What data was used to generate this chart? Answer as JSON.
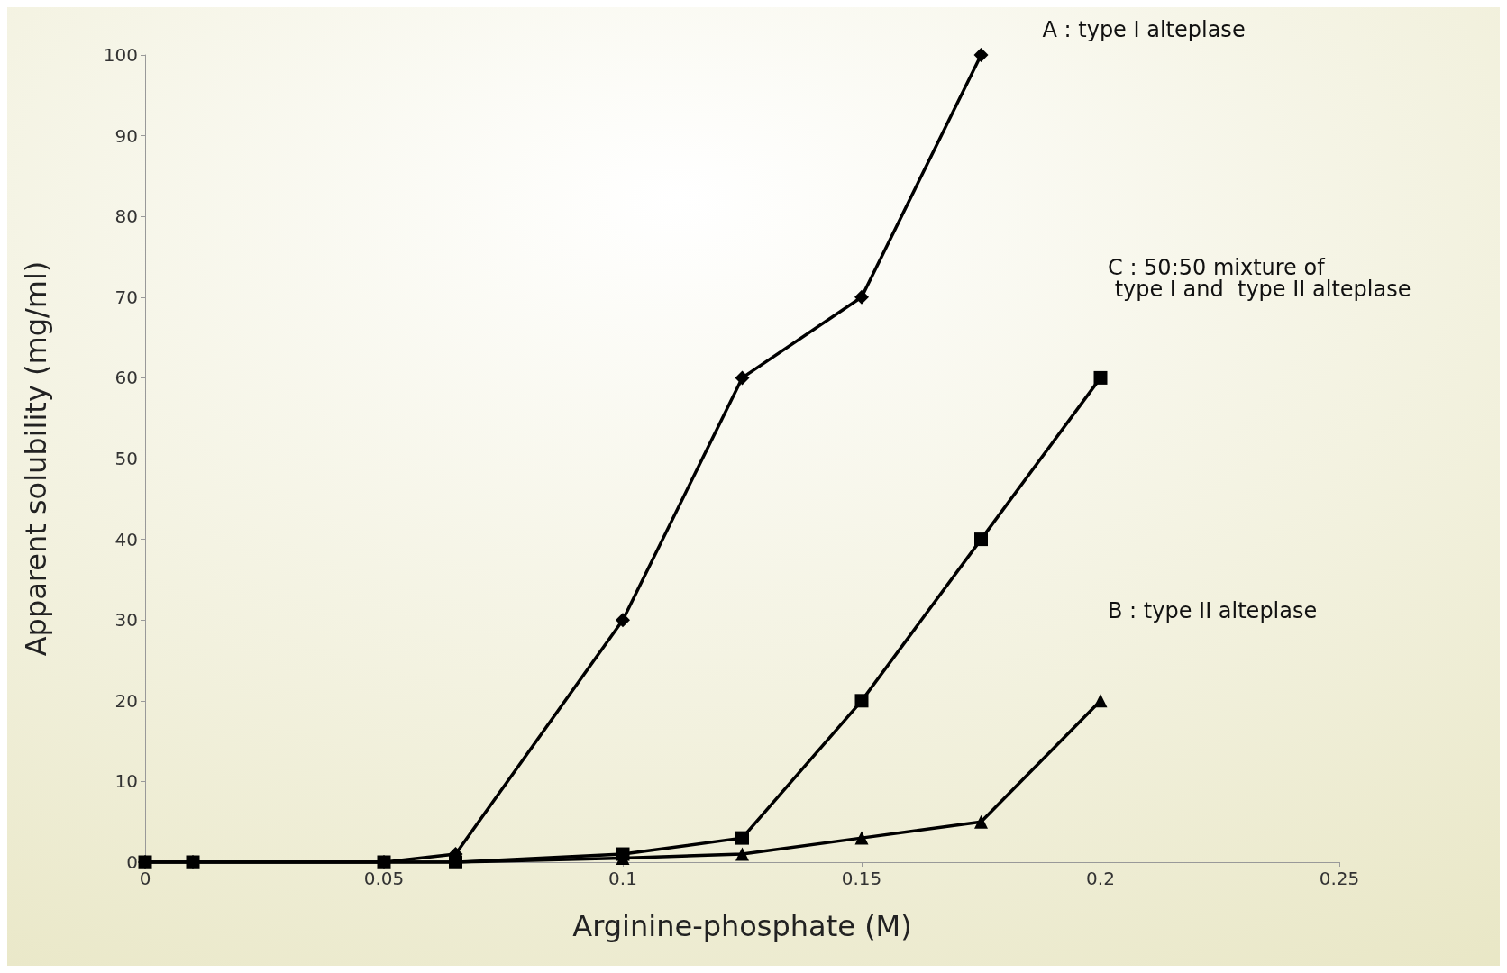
{
  "chart_data": {
    "type": "line",
    "xlabel": "Arginine-phosphate (M)",
    "ylabel": "Apparent solubility (mg/ml)",
    "xlim": [
      0,
      0.25
    ],
    "xticks": [
      0,
      0.05,
      0.1,
      0.15,
      0.2,
      0.25
    ],
    "ylim": [
      0,
      100
    ],
    "yticks": [
      0,
      10,
      20,
      30,
      40,
      50,
      60,
      70,
      80,
      90,
      100
    ],
    "grid": false,
    "legend": false,
    "line_style": "solid",
    "series": [
      {
        "name": "A : type I alteplase",
        "color": "#000000",
        "marker": "diamond",
        "x": [
          0,
          0.01,
          0.05,
          0.065,
          0.1,
          0.125,
          0.15,
          0.175
        ],
        "values": [
          0,
          0,
          0,
          1,
          30,
          60,
          70,
          100
        ]
      },
      {
        "name": "C : 50:50 mixture of\n type I and  type II alteplase",
        "color": "#000000",
        "marker": "square",
        "x": [
          0,
          0.01,
          0.05,
          0.065,
          0.1,
          0.125,
          0.15,
          0.175,
          0.2
        ],
        "values": [
          0,
          0,
          0,
          0,
          1,
          3,
          20,
          40,
          60
        ]
      },
      {
        "name": "B : type II alteplase",
        "color": "#000000",
        "marker": "triangle",
        "x": [
          0,
          0.01,
          0.05,
          0.065,
          0.1,
          0.125,
          0.15,
          0.175,
          0.2
        ],
        "values": [
          0,
          0,
          0,
          0,
          0.5,
          1,
          3,
          5,
          20
        ]
      }
    ]
  }
}
